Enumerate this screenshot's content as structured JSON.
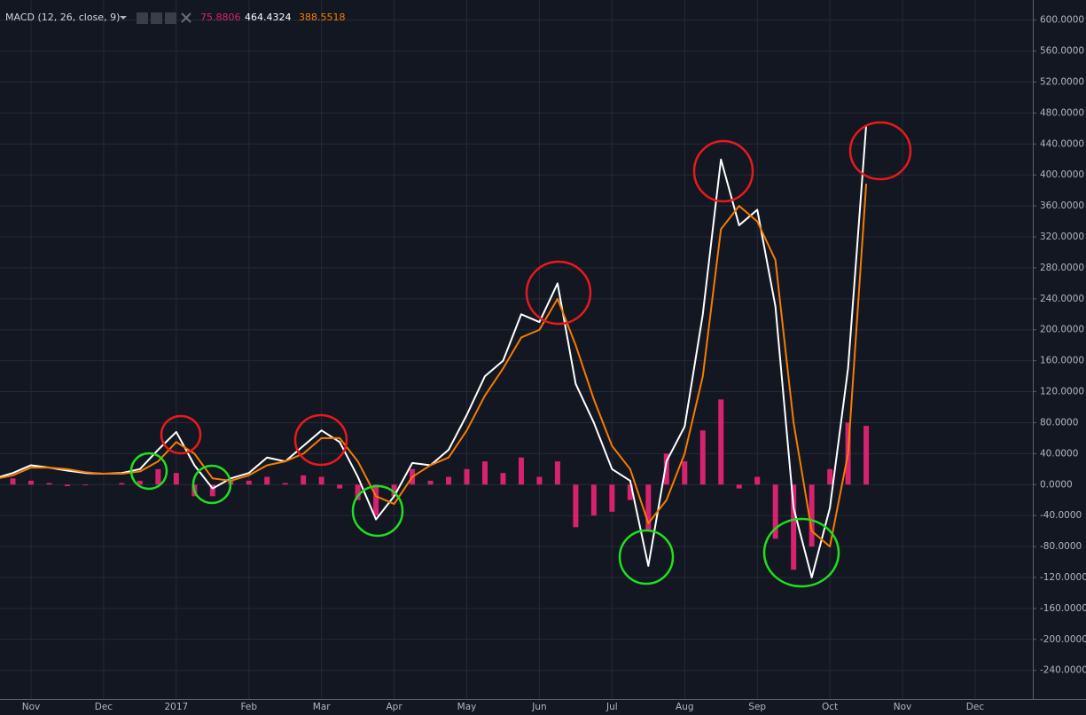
{
  "chart_data": {
    "type": "line",
    "title": "MACD (12, 26, close, 9)",
    "categories": [
      null,
      null,
      "Nov",
      null,
      null,
      null,
      "Dec",
      null,
      null,
      null,
      "2017",
      null,
      null,
      null,
      "Feb",
      null,
      null,
      null,
      "Mar",
      null,
      null,
      null,
      "Apr",
      null,
      null,
      null,
      "May",
      null,
      null,
      null,
      "Jun",
      null,
      null,
      null,
      "Jul",
      null,
      null,
      null,
      "Aug",
      null,
      null,
      null,
      "Sep",
      null,
      null,
      null,
      "Oct",
      null,
      null,
      null,
      "Nov",
      null,
      null,
      null,
      "Dec",
      null
    ],
    "series": [
      {
        "type": "histogram",
        "color": "#d6226f",
        "values": [
          5,
          8,
          5,
          2,
          -2,
          -1,
          0,
          2,
          5,
          20,
          15,
          -15,
          -15,
          5,
          5,
          10,
          2,
          12,
          10,
          -5,
          -20,
          -40,
          -15,
          20,
          5,
          10,
          20,
          30,
          15,
          35,
          10,
          30,
          -55,
          -40,
          -35,
          -20,
          -60,
          40,
          30,
          70,
          110,
          -5,
          10,
          -70,
          -110,
          -80,
          20,
          80,
          75.8806,
          null,
          null,
          null,
          null,
          null,
          null,
          null
        ]
      },
      {
        "type": "line",
        "color": "#ffffff",
        "values": [
          8,
          15,
          25,
          22,
          18,
          15,
          14,
          15,
          20,
          45,
          68,
          25,
          -5,
          8,
          15,
          35,
          30,
          50,
          70,
          55,
          10,
          -45,
          -15,
          28,
          25,
          45,
          90,
          140,
          160,
          220,
          210,
          260,
          130,
          80,
          20,
          5,
          -105,
          30,
          75,
          220,
          420,
          335,
          355,
          230,
          -30,
          -120,
          -30,
          150,
          464.4324,
          null,
          null,
          null,
          null,
          null,
          null,
          null
        ]
      },
      {
        "type": "line",
        "color": "#f57c00",
        "values": [
          7,
          12,
          22,
          22,
          20,
          16,
          14,
          14,
          17,
          30,
          55,
          40,
          8,
          5,
          12,
          25,
          30,
          40,
          60,
          60,
          30,
          -15,
          -25,
          10,
          25,
          35,
          70,
          115,
          150,
          190,
          200,
          240,
          180,
          110,
          50,
          20,
          -50,
          -20,
          40,
          140,
          330,
          360,
          340,
          290,
          80,
          -60,
          -80,
          40,
          388.5518,
          null,
          null,
          null,
          null,
          null,
          null,
          null
        ]
      }
    ],
    "ylim": [
      -277,
      626
    ],
    "yticks": [
      {
        "value": 600,
        "label": "600.0000"
      },
      {
        "value": 560,
        "label": "560.0000"
      },
      {
        "value": 520,
        "label": "520.0000"
      },
      {
        "value": 480,
        "label": "480.0000"
      },
      {
        "value": 440,
        "label": "440.0000"
      },
      {
        "value": 400,
        "label": "400.0000"
      },
      {
        "value": 360,
        "label": "360.0000"
      },
      {
        "value": 320,
        "label": "320.0000"
      },
      {
        "value": 280,
        "label": "280.0000"
      },
      {
        "value": 240,
        "label": "240.0000"
      },
      {
        "value": 200,
        "label": "200.0000"
      },
      {
        "value": 160,
        "label": "160.0000"
      },
      {
        "value": 120,
        "label": "120.0000"
      },
      {
        "value": 80,
        "label": "80.0000"
      },
      {
        "value": 40,
        "label": "40.0000"
      },
      {
        "value": 0,
        "label": "0.0000"
      },
      {
        "value": -40,
        "label": "-40.0000"
      },
      {
        "value": -80,
        "label": "-80.0000"
      },
      {
        "value": -120,
        "label": "-120.0000"
      },
      {
        "value": -160,
        "label": "-160.0000"
      },
      {
        "value": -200,
        "label": "-200.0000"
      },
      {
        "value": -240,
        "label": "-240.0000"
      }
    ],
    "grid": true
  }
}
